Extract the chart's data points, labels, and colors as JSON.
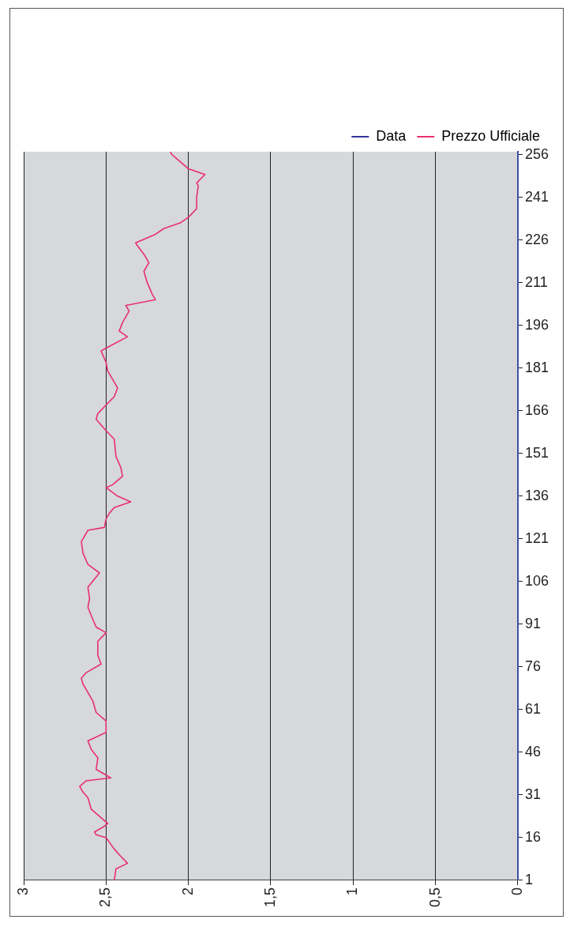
{
  "chart_data": {
    "type": "line",
    "orientation": "horizontal",
    "ylim": [
      1,
      257
    ],
    "yticks": [
      1,
      16,
      31,
      46,
      61,
      76,
      91,
      106,
      121,
      136,
      151,
      166,
      181,
      196,
      211,
      226,
      241,
      256
    ],
    "xlim": [
      3,
      0
    ],
    "xticks": [
      {
        "value": 0,
        "label": "0"
      },
      {
        "value": 0.5,
        "label": "0,5"
      },
      {
        "value": 1,
        "label": "1"
      },
      {
        "value": 1.5,
        "label": "1,5"
      },
      {
        "value": 2,
        "label": "2"
      },
      {
        "value": 2.5,
        "label": "2,5"
      },
      {
        "value": 3,
        "label": "3"
      }
    ],
    "grid": "x",
    "legend": "top right",
    "marker": "none",
    "line_style": "solid",
    "series": [
      {
        "name": "Data",
        "color": "#333399"
      },
      {
        "name": "Prezzo Ufficiale",
        "color": "#e8306e",
        "x": [
          1,
          5,
          7,
          10,
          12,
          16,
          17,
          18,
          20,
          21,
          24,
          26,
          30,
          32,
          34,
          36,
          37,
          38,
          40,
          44,
          47,
          50,
          53,
          57,
          60,
          64,
          67,
          70,
          72,
          74,
          77,
          80,
          85,
          88,
          90,
          94,
          97,
          100,
          104,
          109,
          112,
          116,
          120,
          124,
          125,
          128,
          130,
          132,
          134,
          136,
          139,
          140,
          143,
          146,
          150,
          156,
          159,
          163,
          165,
          168,
          171,
          174,
          176,
          180,
          183,
          187,
          188,
          192,
          194,
          197,
          201,
          203,
          205,
          207,
          211,
          215,
          218,
          221,
          224,
          225,
          228,
          230,
          232,
          234,
          237,
          241,
          245,
          246,
          249,
          251,
          253,
          256,
          257
        ],
        "values": [
          2.45,
          2.44,
          2.37,
          2.42,
          2.45,
          2.5,
          2.56,
          2.57,
          2.51,
          2.49,
          2.55,
          2.59,
          2.61,
          2.64,
          2.66,
          2.62,
          2.47,
          2.5,
          2.56,
          2.55,
          2.59,
          2.61,
          2.5,
          2.5,
          2.56,
          2.58,
          2.61,
          2.64,
          2.65,
          2.62,
          2.53,
          2.55,
          2.55,
          2.5,
          2.56,
          2.59,
          2.61,
          2.6,
          2.61,
          2.54,
          2.61,
          2.64,
          2.65,
          2.61,
          2.51,
          2.5,
          2.48,
          2.45,
          2.35,
          2.43,
          2.5,
          2.46,
          2.4,
          2.41,
          2.44,
          2.45,
          2.5,
          2.56,
          2.55,
          2.5,
          2.45,
          2.43,
          2.45,
          2.49,
          2.5,
          2.53,
          2.5,
          2.37,
          2.42,
          2.4,
          2.36,
          2.38,
          2.2,
          2.22,
          2.25,
          2.27,
          2.24,
          2.27,
          2.31,
          2.32,
          2.2,
          2.15,
          2.05,
          2.0,
          1.95,
          1.95,
          1.94,
          1.95,
          1.9,
          2.0,
          2.04,
          2.1,
          2.11
        ]
      }
    ]
  }
}
